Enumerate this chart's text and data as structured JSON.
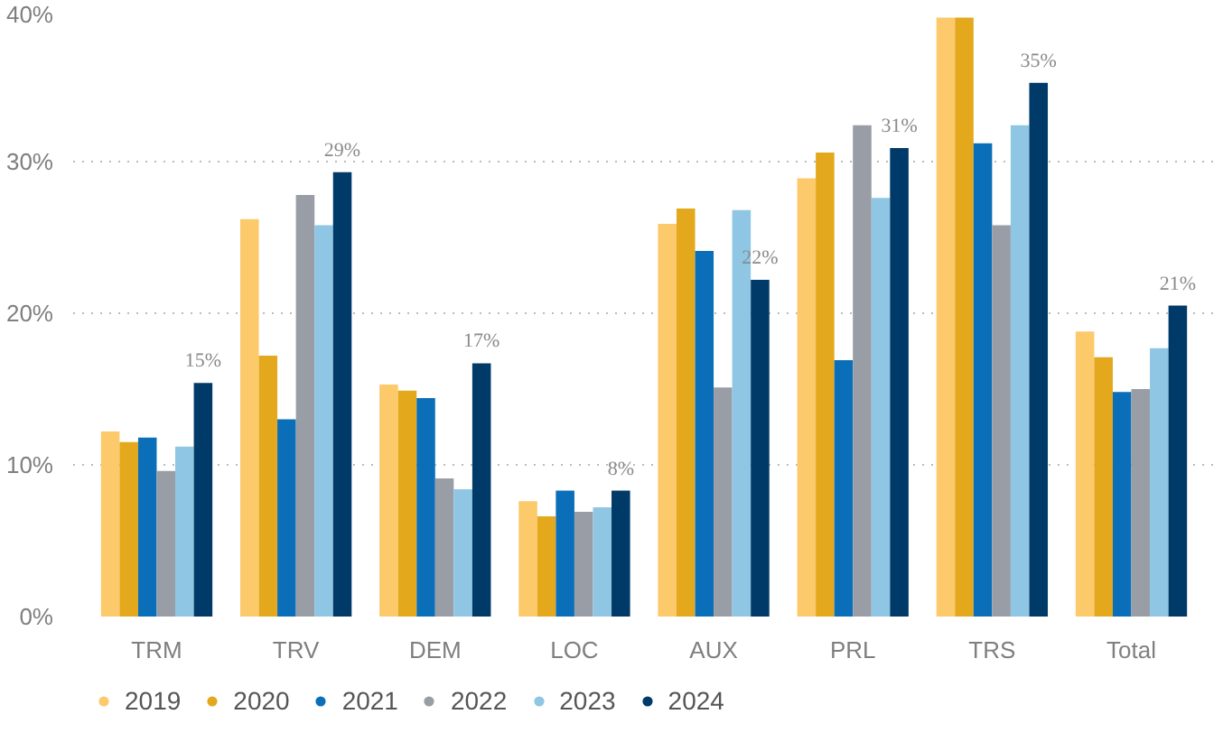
{
  "chart_data": {
    "type": "bar",
    "categories": [
      "TRM",
      "TRV",
      "DEM",
      "LOC",
      "AUX",
      "PRL",
      "TRS",
      "Total"
    ],
    "series": [
      {
        "name": "2019",
        "color": "#fcc96b",
        "values": [
          12.2,
          26.2,
          15.3,
          7.6,
          25.9,
          28.9,
          39.5,
          18.8
        ]
      },
      {
        "name": "2020",
        "color": "#e3a81c",
        "values": [
          11.5,
          17.2,
          14.9,
          6.6,
          26.9,
          30.6,
          39.5,
          17.1
        ]
      },
      {
        "name": "2021",
        "color": "#0a6fb8",
        "values": [
          11.8,
          13.0,
          14.4,
          8.3,
          24.1,
          16.9,
          31.2,
          14.8
        ]
      },
      {
        "name": "2022",
        "color": "#999da6",
        "values": [
          9.6,
          27.8,
          9.1,
          6.9,
          15.1,
          32.4,
          25.8,
          15.0
        ]
      },
      {
        "name": "2023",
        "color": "#8ec6e3",
        "values": [
          11.2,
          25.8,
          8.4,
          7.2,
          26.8,
          27.6,
          32.4,
          17.7
        ]
      },
      {
        "name": "2024",
        "color": "#003a68",
        "values": [
          15.4,
          29.3,
          16.7,
          8.3,
          22.2,
          30.9,
          35.2,
          20.5
        ],
        "value_labels": [
          "15%",
          "29%",
          "17%",
          "8%",
          "22%",
          "31%",
          "35%",
          "21%"
        ]
      }
    ],
    "ylim": [
      0,
      40
    ],
    "yticks": [
      {
        "value": 0,
        "label": "0%"
      },
      {
        "value": 10,
        "label": "10%"
      },
      {
        "value": 20,
        "label": "20%"
      },
      {
        "value": 30,
        "label": "30%"
      },
      {
        "value": 40,
        "label": "40%"
      }
    ],
    "grid": "y",
    "legend": "bottom left"
  }
}
